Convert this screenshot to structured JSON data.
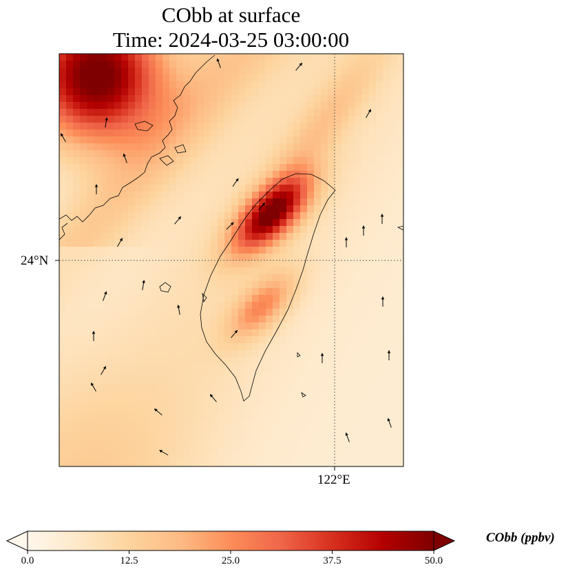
{
  "figure": {
    "title_line1": "CObb at surface",
    "title_line2": "Time: 2024-03-25 03:00:00"
  },
  "axes": {
    "lat_label": "24°N",
    "lon_label": "122°E",
    "gridline_lat": 24,
    "gridline_lon": 122
  },
  "colorbar": {
    "label": "CObb (ppbv)",
    "min": 0,
    "max": 50,
    "ticks": [
      "0.0",
      "12.5",
      "25.0",
      "37.5",
      "50.0"
    ],
    "extend": "both",
    "colormap": "OrRd",
    "colors": [
      "#fff7ec",
      "#fee8c8",
      "#fdd49e",
      "#fdbb84",
      "#fc8d59",
      "#ef6548",
      "#d7301f",
      "#b30000",
      "#7f0000"
    ]
  },
  "map": {
    "field": "CObb",
    "units": "ppbv",
    "features": [
      "coastline",
      "wind-vectors",
      "lat-lon-gridlines"
    ]
  }
}
